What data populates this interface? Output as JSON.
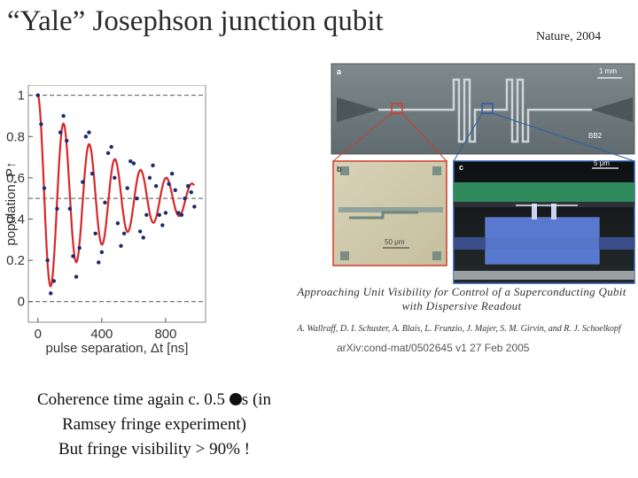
{
  "slide": {
    "title": "“Yale”  Josephson junction qubit",
    "citation": "Nature, 2004"
  },
  "figure_labels": {
    "panel_a": "a",
    "panel_b": "b",
    "panel_c": "c",
    "scale_a": "1 mm",
    "scale_b": "50 μm",
    "scale_c": "5 μm",
    "sample_id": "BB2"
  },
  "paper": {
    "title_line1": "Approaching Unit Visibility for Control of a Superconducting Qubit",
    "title_line2": "with Dispersive Readout",
    "authors": "A. Wallraff, D. I. Schuster, A. Blais, L. Frunzio, J. Majer, S. M. Girvin, and R. J. Schoelkopf",
    "arxiv": "arXiv:cond-mat/0502645 v1    27 Feb 2005"
  },
  "caption": {
    "line1_pre": "Coherence time again c. 0.5 ",
    "line1_post": "s (in",
    "line2": "Ramsey fringe experiment)",
    "line3": "But fringe visibility > 90% !"
  },
  "chart_data": {
    "type": "scatter",
    "xlabel": "pulse separation, Δt [ns]",
    "ylabel": "population, P↑",
    "xlim": [
      -60,
      1050
    ],
    "ylim": [
      -0.1,
      1.05
    ],
    "xticks": [
      0,
      400,
      800
    ],
    "yticks": [
      0,
      0.2,
      0.4,
      0.6,
      0.8,
      1
    ],
    "ytick_labels": [
      "0",
      "0.2",
      "0.4",
      "0.6",
      "0.8",
      "1"
    ],
    "reference_lines": [
      1,
      0.5,
      0
    ],
    "fit": {
      "description": "damped cosine",
      "amplitude": 0.5,
      "offset": 0.5,
      "period_ns": 161,
      "decay_ns": 500
    },
    "colors": {
      "fit": "#d9262a",
      "points": "#1f2a6e",
      "reference": "#555555"
    },
    "series": [
      {
        "type": "points",
        "x": [
          0,
          20,
          40,
          60,
          80,
          100,
          120,
          140,
          160,
          180,
          200,
          220,
          240,
          260,
          280,
          300,
          320,
          340,
          360,
          380,
          400,
          420,
          440,
          460,
          480,
          500,
          520,
          540,
          560,
          580,
          600,
          620,
          640,
          660,
          680,
          700,
          720,
          740,
          760,
          780,
          800,
          820,
          840,
          860,
          880,
          900,
          920,
          940,
          960,
          980
        ],
        "y": [
          1.0,
          0.86,
          0.55,
          0.2,
          0.04,
          0.1,
          0.45,
          0.82,
          0.9,
          0.78,
          0.45,
          0.22,
          0.12,
          0.26,
          0.58,
          0.8,
          0.82,
          0.62,
          0.33,
          0.19,
          0.24,
          0.48,
          0.72,
          0.75,
          0.6,
          0.38,
          0.27,
          0.33,
          0.55,
          0.68,
          0.67,
          0.5,
          0.34,
          0.31,
          0.42,
          0.6,
          0.66,
          0.56,
          0.42,
          0.37,
          0.43,
          0.57,
          0.62,
          0.54,
          0.43,
          0.42,
          0.5,
          0.56,
          0.53,
          0.46
        ]
      }
    ]
  }
}
